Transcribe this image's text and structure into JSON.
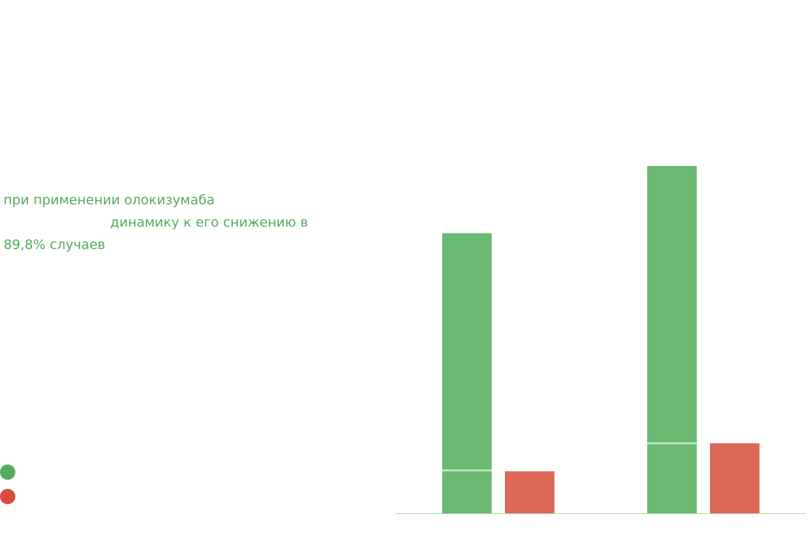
{
  "description": {
    "line1": "при применении олокизумаба",
    "line2": "динамику к его снижению в",
    "line3": "89,8% случаев"
  },
  "legend": {
    "items": [
      {
        "color": "#54ad5e",
        "label": ""
      },
      {
        "color": "#d84c3e",
        "label": ""
      }
    ]
  },
  "colors": {
    "green": "#69b973",
    "red": "#de6958",
    "separator": "#bfe3c3",
    "axis": "#a9d8ae"
  },
  "chart_data": {
    "type": "bar",
    "categories": [
      "",
      ""
    ],
    "series": [
      {
        "values": [
          100,
          124
        ],
        "inner_values": [
          15.3,
          25
        ]
      },
      {
        "values": [
          15,
          25
        ]
      }
    ],
    "ylim": [
      0,
      124
    ],
    "grid": false,
    "legend_position": "bottom-left"
  }
}
